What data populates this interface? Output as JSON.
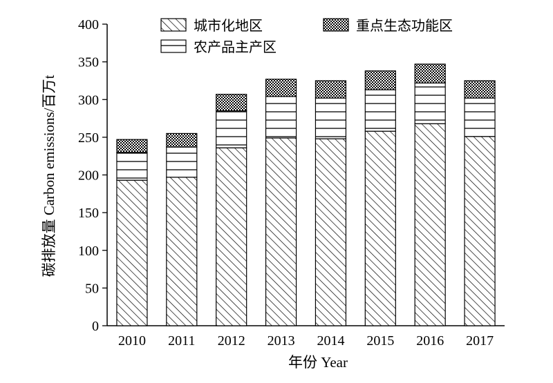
{
  "chart_data": {
    "type": "bar",
    "stacked": true,
    "categories": [
      "2010",
      "2011",
      "2012",
      "2013",
      "2014",
      "2015",
      "2016",
      "2017"
    ],
    "series": [
      {
        "name": "城市化地区",
        "values": [
          193,
          197,
          236,
          249,
          248,
          258,
          268,
          251
        ],
        "pattern": "diagonal-hatch"
      },
      {
        "name": "农产品主产区",
        "values": [
          37,
          40,
          49,
          55,
          54,
          55,
          54,
          51
        ],
        "pattern": "horizontal-lines"
      },
      {
        "name": "重点生态功能区",
        "values": [
          17,
          18,
          22,
          23,
          23,
          25,
          25,
          23
        ],
        "pattern": "crosshatch-dots"
      }
    ],
    "xlabel": "年份 Year",
    "ylabel": "碳排放量 Carbon emissions/百万t",
    "ylim": [
      0,
      400
    ],
    "yticks": [
      0,
      50,
      100,
      150,
      200,
      250,
      300,
      350,
      400
    ],
    "grid": false,
    "legend": "top"
  }
}
